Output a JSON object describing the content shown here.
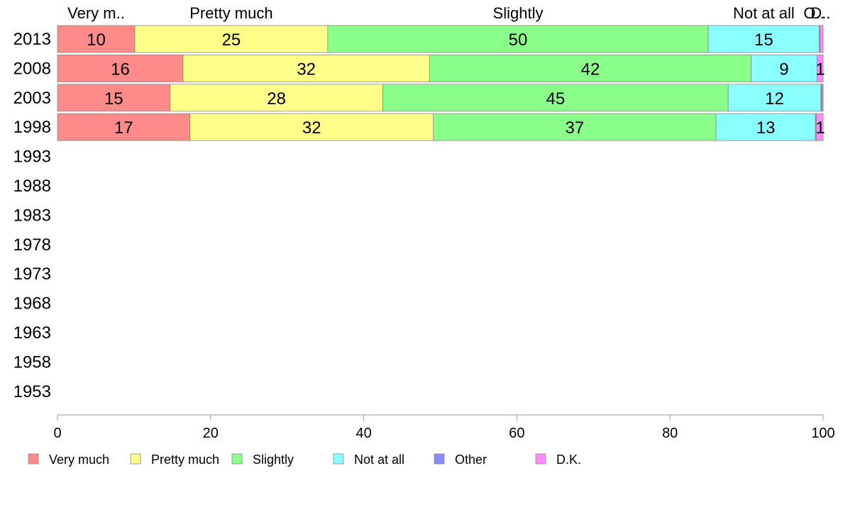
{
  "chart_data": {
    "type": "bar",
    "orientation": "horizontal",
    "stacked": true,
    "title": "",
    "xlabel": "",
    "ylabel": "",
    "xlim": [
      0,
      100
    ],
    "xticks": [
      "0",
      "20",
      "40",
      "60",
      "80",
      "100"
    ],
    "categories": [
      "2013",
      "2008",
      "2003",
      "1998",
      "1993",
      "1988",
      "1983",
      "1978",
      "1973",
      "1968",
      "1963",
      "1958",
      "1953"
    ],
    "top_labels": [
      "Very m..",
      "Pretty much",
      "Slightly",
      "Not at all",
      "O..",
      "D.."
    ],
    "series": [
      {
        "name": "Very much",
        "color": "#ff8a8a",
        "values": [
          10.1,
          16.4,
          14.7,
          17.3,
          null,
          null,
          null,
          null,
          null,
          null,
          null,
          null,
          null
        ],
        "labels": [
          "10",
          "16",
          "15",
          "17"
        ]
      },
      {
        "name": "Pretty much",
        "color": "#ffff8a",
        "values": [
          25.2,
          32.2,
          27.8,
          31.8,
          null,
          null,
          null,
          null,
          null,
          null,
          null,
          null,
          null
        ],
        "labels": [
          "25",
          "32",
          "28",
          "32"
        ]
      },
      {
        "name": "Slightly",
        "color": "#8aff8a",
        "values": [
          49.7,
          42.0,
          45.1,
          36.9,
          null,
          null,
          null,
          null,
          null,
          null,
          null,
          null,
          null
        ],
        "labels": [
          "50",
          "42",
          "45",
          "37"
        ]
      },
      {
        "name": "Not at all",
        "color": "#8affff",
        "values": [
          14.5,
          8.6,
          12.1,
          13.0,
          null,
          null,
          null,
          null,
          null,
          null,
          null,
          null,
          null
        ],
        "labels": [
          "15",
          "9",
          "12",
          "13"
        ]
      },
      {
        "name": "Other",
        "color": "#8a8aff",
        "values": [
          0.1,
          0.0,
          0.2,
          0.1,
          null,
          null,
          null,
          null,
          null,
          null,
          null,
          null,
          null
        ],
        "labels": [
          "",
          "",
          "",
          ""
        ]
      },
      {
        "name": "D.K.",
        "color": "#ff8aff",
        "values": [
          0.4,
          0.8,
          0.1,
          0.9,
          null,
          null,
          null,
          null,
          null,
          null,
          null,
          null,
          null
        ],
        "labels": [
          "",
          "1",
          "",
          "1"
        ]
      }
    ],
    "legend": [
      "Very much",
      "Pretty much",
      "Slightly",
      "Not at all",
      "Other",
      "D.K."
    ],
    "legend_position": "bottom",
    "grid": false
  }
}
